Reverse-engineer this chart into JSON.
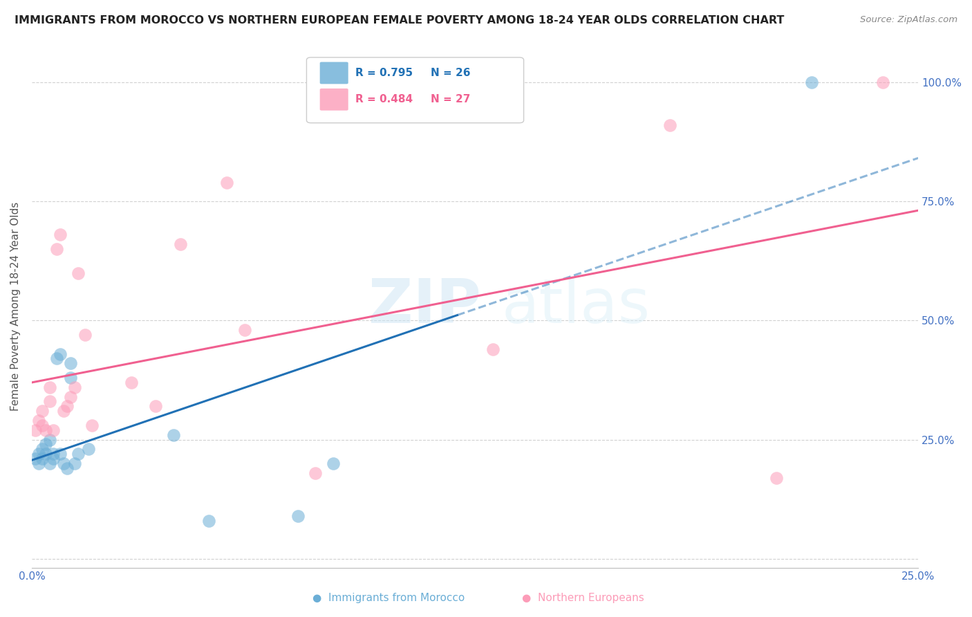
{
  "title": "IMMIGRANTS FROM MOROCCO VS NORTHERN EUROPEAN FEMALE POVERTY AMONG 18-24 YEAR OLDS CORRELATION CHART",
  "source": "Source: ZipAtlas.com",
  "ylabel": "Female Poverty Among 18-24 Year Olds",
  "xlim": [
    0.0,
    0.25
  ],
  "ylim": [
    -0.02,
    1.08
  ],
  "yticks": [
    0.0,
    0.25,
    0.5,
    0.75,
    1.0
  ],
  "ytick_labels": [
    "",
    "25.0%",
    "50.0%",
    "75.0%",
    "100.0%"
  ],
  "xtick_positions": [
    0.0,
    0.05,
    0.1,
    0.15,
    0.2,
    0.25
  ],
  "xtick_labels": [
    "0.0%",
    "",
    "",
    "",
    "",
    "25.0%"
  ],
  "morocco_R": 0.795,
  "morocco_N": 26,
  "northern_R": 0.484,
  "northern_N": 27,
  "morocco_color": "#6baed6",
  "northern_color": "#fc9cb8",
  "morocco_line_color": "#2171b5",
  "northern_line_color": "#f06090",
  "watermark_zip": "ZIP",
  "watermark_atlas": "atlas",
  "morocco_x": [
    0.001,
    0.002,
    0.002,
    0.003,
    0.003,
    0.004,
    0.004,
    0.005,
    0.005,
    0.006,
    0.006,
    0.007,
    0.008,
    0.008,
    0.009,
    0.01,
    0.011,
    0.011,
    0.012,
    0.013,
    0.016,
    0.04,
    0.05,
    0.075,
    0.085,
    0.22
  ],
  "morocco_y": [
    0.21,
    0.22,
    0.2,
    0.21,
    0.23,
    0.22,
    0.24,
    0.2,
    0.25,
    0.21,
    0.22,
    0.42,
    0.22,
    0.43,
    0.2,
    0.19,
    0.38,
    0.41,
    0.2,
    0.22,
    0.23,
    0.26,
    0.08,
    0.09,
    0.2,
    1.0
  ],
  "northern_x": [
    0.001,
    0.002,
    0.003,
    0.003,
    0.004,
    0.005,
    0.005,
    0.006,
    0.007,
    0.008,
    0.009,
    0.01,
    0.011,
    0.012,
    0.013,
    0.015,
    0.017,
    0.028,
    0.035,
    0.042,
    0.055,
    0.06,
    0.08,
    0.13,
    0.18,
    0.21,
    0.24
  ],
  "northern_y": [
    0.27,
    0.29,
    0.28,
    0.31,
    0.27,
    0.33,
    0.36,
    0.27,
    0.65,
    0.68,
    0.31,
    0.32,
    0.34,
    0.36,
    0.6,
    0.47,
    0.28,
    0.37,
    0.32,
    0.66,
    0.79,
    0.48,
    0.18,
    0.44,
    0.91,
    0.17,
    1.0
  ]
}
